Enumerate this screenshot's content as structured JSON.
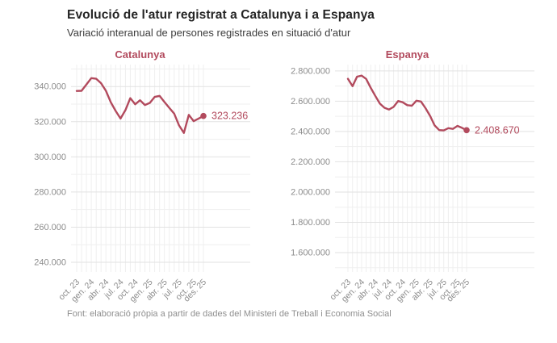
{
  "page": {
    "title": "Evolució de l'atur registrat a Catalunya i a Espanya",
    "subtitle": "Variació interanual de persones registrades en situació d'atur",
    "source": "Font: elaboració pròpia a partir de dades del Ministeri de Treball i Economia Social"
  },
  "colors": {
    "accent": "#b24a5d",
    "grid_major": "#e2e2e2",
    "grid_minor": "#efefef",
    "axis_label": "#8c8c8c",
    "title_text": "#242424"
  },
  "chart_data": [
    {
      "type": "line",
      "title": "Catalunya",
      "x": [
        "oct. 23",
        "nov. 23",
        "des. 23",
        "gen. 24",
        "feb. 24",
        "mar. 24",
        "abr. 24",
        "mai. 24",
        "jun. 24",
        "jul. 24",
        "ago. 24",
        "set. 24",
        "oct. 24",
        "nov. 24",
        "des. 24",
        "gen. 25",
        "feb. 25",
        "mar. 25",
        "abr. 25",
        "mai. 25",
        "jun. 25",
        "jul. 25",
        "ago. 25",
        "set. 25",
        "oct. 25",
        "nov. 25",
        "des. 25"
      ],
      "tick_indices": [
        0,
        3,
        6,
        9,
        12,
        15,
        18,
        21,
        24,
        26
      ],
      "values": [
        337500,
        337600,
        341200,
        344800,
        344400,
        341900,
        337600,
        331000,
        326100,
        321800,
        326600,
        333400,
        329900,
        332200,
        329500,
        330700,
        334100,
        334700,
        331200,
        327900,
        324600,
        317900,
        313600,
        323900,
        320300,
        321800,
        323236
      ],
      "end_label": "323.236",
      "last_value": 323236,
      "y_tick_values": [
        340000,
        320000,
        300000,
        280000,
        260000,
        240000
      ],
      "y_tick_labels": [
        "340.000",
        "320.000",
        "300.000",
        "280.000",
        "260.000",
        "240.000"
      ],
      "y_minor_values": [
        350000,
        330000,
        310000,
        290000,
        270000,
        250000
      ],
      "ylim": [
        234500,
        352500
      ],
      "grid": true,
      "legend": "none"
    },
    {
      "type": "line",
      "title": "Espanya",
      "x": [
        "oct. 23",
        "nov. 23",
        "des. 23",
        "gen. 24",
        "feb. 24",
        "mar. 24",
        "abr. 24",
        "mai. 24",
        "jun. 24",
        "jul. 24",
        "ago. 24",
        "set. 24",
        "oct. 24",
        "nov. 24",
        "des. 24",
        "gen. 25",
        "feb. 25",
        "mar. 25",
        "abr. 25",
        "mai. 25",
        "jun. 25",
        "jul. 25",
        "ago. 25",
        "set. 25",
        "oct. 25",
        "nov. 25",
        "des. 25"
      ],
      "tick_indices": [
        0,
        3,
        6,
        9,
        12,
        15,
        18,
        21,
        24,
        26
      ],
      "values": [
        2748000,
        2699000,
        2762000,
        2769000,
        2747000,
        2688000,
        2635000,
        2584000,
        2557000,
        2545000,
        2562000,
        2601000,
        2593000,
        2574000,
        2570000,
        2603000,
        2598000,
        2554000,
        2503000,
        2440000,
        2409000,
        2407000,
        2422000,
        2417000,
        2437000,
        2424000,
        2408670
      ],
      "end_label": "2.408.670",
      "last_value": 2408670,
      "y_tick_values": [
        2800000,
        2600000,
        2400000,
        2200000,
        2000000,
        1800000,
        1600000
      ],
      "y_tick_labels": [
        "2.800.000",
        "2.600.000",
        "2.400.000",
        "2.200.000",
        "2.000.000",
        "1.800.000",
        "1.600.000"
      ],
      "y_minor_values": [
        2700000,
        2500000,
        2300000,
        2100000,
        1900000,
        1700000,
        1500000
      ],
      "ylim": [
        1472000,
        2842000
      ],
      "grid": true,
      "legend": "none"
    }
  ]
}
